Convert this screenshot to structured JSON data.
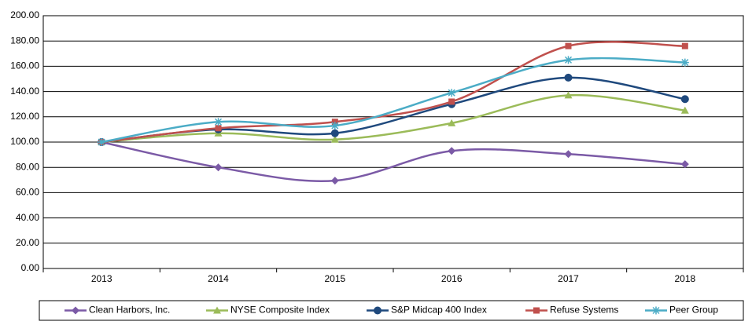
{
  "chart_data": {
    "type": "line",
    "smooth": true,
    "grid": true,
    "categories": [
      "2013",
      "2014",
      "2015",
      "2016",
      "2017",
      "2018"
    ],
    "ylim": [
      0,
      200
    ],
    "yticks": [
      {
        "value": 0,
        "label": "0.00"
      },
      {
        "value": 20,
        "label": "20.00"
      },
      {
        "value": 40,
        "label": "40.00"
      },
      {
        "value": 60,
        "label": "60.00"
      },
      {
        "value": 80,
        "label": "80.00"
      },
      {
        "value": 100,
        "label": "100.00"
      },
      {
        "value": 120,
        "label": "120.00"
      },
      {
        "value": 140,
        "label": "140.00"
      },
      {
        "value": 160,
        "label": "160.00"
      },
      {
        "value": 180,
        "label": "180.00"
      },
      {
        "value": 200,
        "label": "200.00"
      }
    ],
    "series": [
      {
        "name": "Clean Harbors, Inc.",
        "color": "#7b5aa6",
        "marker": "diamond",
        "values": [
          100,
          80,
          69.5,
          93,
          90.5,
          82.5
        ]
      },
      {
        "name": "NYSE Composite Index",
        "color": "#9bbb59",
        "marker": "triangle",
        "values": [
          100,
          107,
          102,
          115,
          137,
          125
        ]
      },
      {
        "name": "S&P Midcap 400 Index",
        "color": "#1f497d",
        "marker": "circle",
        "values": [
          100,
          110,
          107,
          130,
          151,
          134
        ]
      },
      {
        "name": "Refuse Systems",
        "color": "#c0504d",
        "marker": "square",
        "values": [
          100,
          111,
          116,
          132,
          176,
          176
        ]
      },
      {
        "name": "Peer Group",
        "color": "#4bacc6",
        "marker": "asterisk",
        "values": [
          100,
          116,
          113,
          139,
          165,
          163
        ]
      }
    ]
  }
}
